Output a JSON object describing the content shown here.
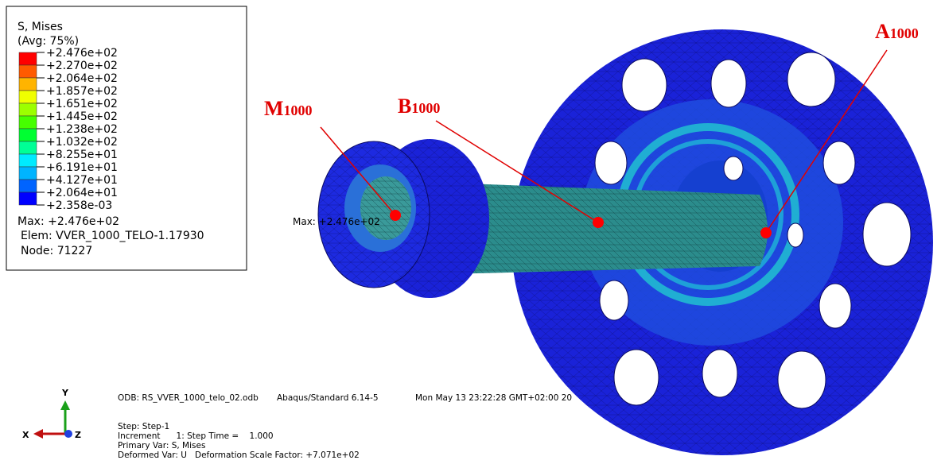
{
  "legend": {
    "title": "S, Mises",
    "subtitle": "(Avg: 75%)",
    "levels": [
      "+2.476e+02",
      "+2.270e+02",
      "+2.064e+02",
      "+1.857e+02",
      "+1.651e+02",
      "+1.445e+02",
      "+1.238e+02",
      "+1.032e+02",
      "+8.255e+01",
      "+6.191e+01",
      "+4.127e+01",
      "+2.064e+01",
      "+2.358e-03"
    ],
    "colors": [
      "#ff0000",
      "#ff5a00",
      "#ffb400",
      "#f0ff00",
      "#9cff00",
      "#46ff00",
      "#00ff32",
      "#00ff96",
      "#00ebff",
      "#00b4ff",
      "#0064ff",
      "#0000ff"
    ],
    "max": "Max: +2.476e+02",
    "elem": "Elem: VVER_1000_TELO-1.17930",
    "node": "Node: 71227"
  },
  "model": {
    "max_label": "Max: +2.476e+02",
    "points": [
      {
        "letter": "M",
        "sub": "1000"
      },
      {
        "letter": "B",
        "sub": "1000"
      },
      {
        "letter": "A",
        "sub": "1000"
      }
    ]
  },
  "footer": {
    "odb": "ODB: RS_VVER_1000_telo_02.odb",
    "solver": "Abaqus/Standard 6.14-5",
    "date": "Mon May 13 23:22:28 GMT+02:00 20",
    "step": "Step: Step-1",
    "increment": "Increment      1: Step Time =    1.000",
    "primary": "Primary Var: S, Mises",
    "deformed": "Deformed Var: U   Deformation Scale Factor: +7.071e+02"
  },
  "triad": {
    "x": "X",
    "y": "Y",
    "z": "Z"
  }
}
